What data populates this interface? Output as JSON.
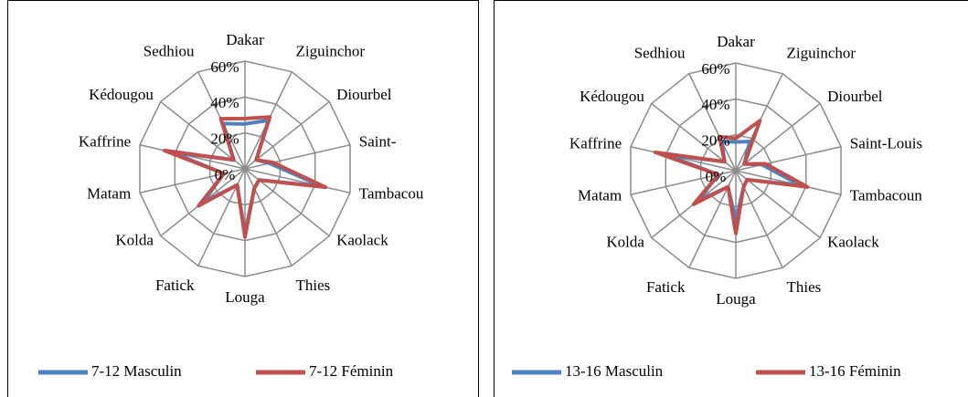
{
  "chart_data": [
    {
      "type": "radar",
      "categories": [
        "Dakar",
        "Ziguinchor",
        "Diourbel",
        "Saint-",
        "Tambacou",
        "Kaolack",
        "Thies",
        "Louga",
        "Fatick",
        "Kolda",
        "Matam",
        "Kaffrine",
        "Kédougou",
        "Sedhiou"
      ],
      "series": [
        {
          "name": "7-12 Masculin",
          "color": "#4f81bd",
          "values": [
            25,
            30,
            8,
            14,
            44,
            10,
            12,
            36,
            10,
            30,
            12,
            42,
            8,
            28
          ]
        },
        {
          "name": "7-12 Féminin",
          "color": "#c0504d",
          "values": [
            28,
            32,
            8,
            16,
            46,
            10,
            12,
            38,
            10,
            33,
            12,
            46,
            8,
            31
          ]
        }
      ],
      "ylim": [
        0,
        60
      ],
      "yticks": [
        {
          "value": 0,
          "label": "0%"
        },
        {
          "value": 20,
          "label": "20%"
        },
        {
          "value": 40,
          "label": "40%"
        },
        {
          "value": 60,
          "label": "60%"
        }
      ],
      "grid": true,
      "legend": "bottom"
    },
    {
      "type": "radar",
      "categories": [
        "Dakar",
        "Ziguinchor",
        "Diourbel",
        "Saint-Louis",
        "Tambacoun",
        "Kaolack",
        "Thies",
        "Louga",
        "Fatick",
        "Kolda",
        "Matam",
        "Kaffrine",
        "Kédougou",
        "Sedhiou"
      ],
      "series": [
        {
          "name": "13-16 Masculin",
          "color": "#4f81bd",
          "values": [
            16,
            18,
            6,
            15,
            37,
            8,
            10,
            28,
            10,
            27,
            10,
            40,
            8,
            18
          ]
        },
        {
          "name": "13-16 Féminin",
          "color": "#c0504d",
          "values": [
            18,
            31,
            6,
            17,
            41,
            8,
            10,
            35,
            10,
            30,
            10,
            46,
            8,
            21
          ]
        }
      ],
      "ylim": [
        0,
        60
      ],
      "yticks": [
        {
          "value": 0,
          "label": "0%"
        },
        {
          "value": 20,
          "label": "20%"
        },
        {
          "value": 40,
          "label": "40%"
        },
        {
          "value": 60,
          "label": "60%"
        }
      ],
      "grid": true,
      "legend": "bottom"
    }
  ]
}
